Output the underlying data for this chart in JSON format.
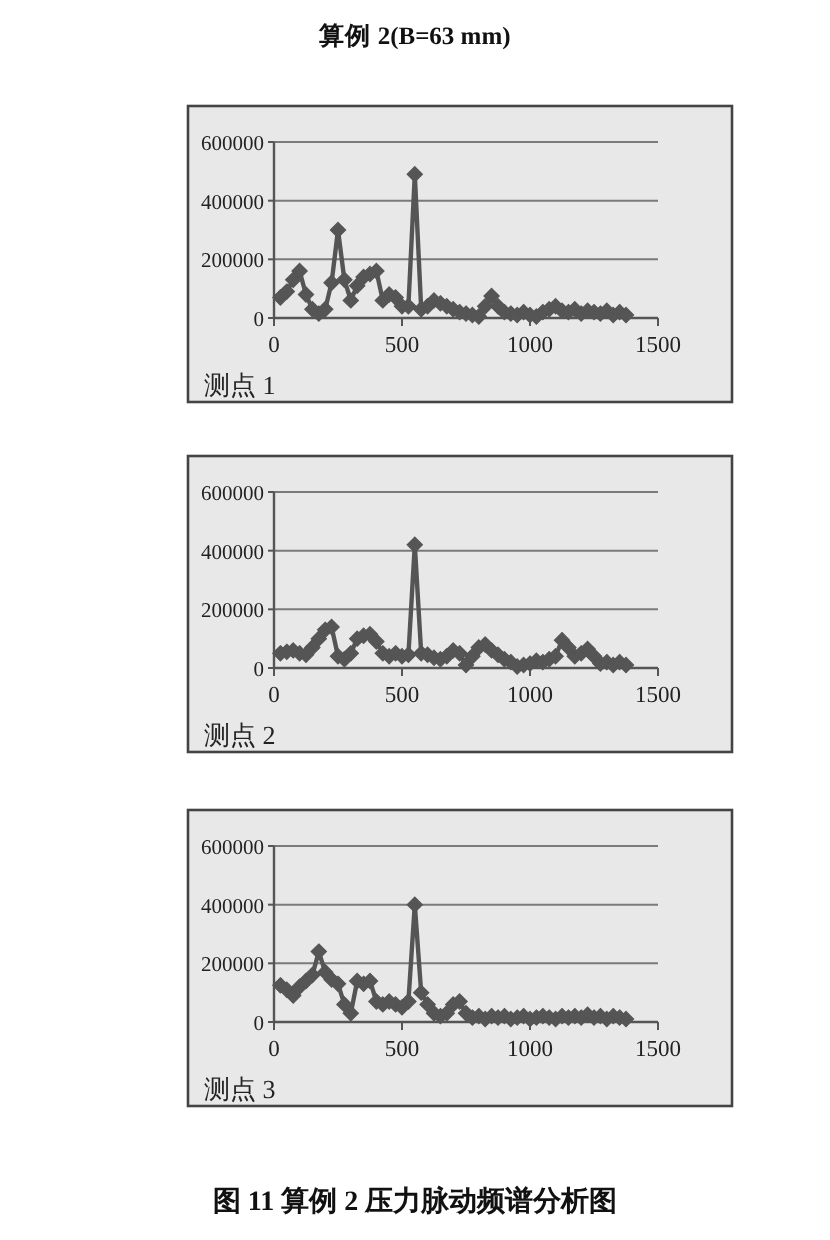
{
  "chart_data": [
    {
      "type": "line",
      "title": "算例 2(B=63 mm)",
      "annotations": [
        "测点 1"
      ],
      "color": "#555555",
      "marker": "diamond",
      "grid": "y",
      "xlim": [
        0,
        1500
      ],
      "xticks": [
        0,
        500,
        1000,
        1500
      ],
      "ylim": [
        0,
        600000
      ],
      "yticks": [
        0,
        200000,
        400000,
        600000
      ],
      "x": [
        25,
        50,
        75,
        100,
        125,
        150,
        175,
        200,
        225,
        250,
        275,
        300,
        325,
        350,
        375,
        400,
        425,
        450,
        475,
        500,
        525,
        550,
        575,
        600,
        625,
        650,
        675,
        700,
        725,
        750,
        775,
        800,
        825,
        850,
        875,
        900,
        925,
        950,
        975,
        1000,
        1025,
        1050,
        1075,
        1100,
        1125,
        1150,
        1175,
        1200,
        1225,
        1250,
        1275,
        1300,
        1325,
        1350,
        1375
      ],
      "values": [
        70000,
        90000,
        130000,
        160000,
        80000,
        30000,
        15000,
        30000,
        120000,
        300000,
        130000,
        60000,
        110000,
        140000,
        150000,
        160000,
        60000,
        80000,
        70000,
        40000,
        40000,
        490000,
        30000,
        40000,
        60000,
        50000,
        40000,
        30000,
        20000,
        15000,
        10000,
        5000,
        40000,
        75000,
        40000,
        20000,
        15000,
        10000,
        20000,
        10000,
        5000,
        20000,
        30000,
        40000,
        25000,
        20000,
        30000,
        15000,
        25000,
        20000,
        15000,
        25000,
        10000,
        20000,
        10000
      ]
    },
    {
      "type": "line",
      "annotations": [
        "测点 2"
      ],
      "color": "#555555",
      "marker": "diamond",
      "grid": "y",
      "xlim": [
        0,
        1500
      ],
      "xticks": [
        0,
        500,
        1000,
        1500
      ],
      "ylim": [
        0,
        600000
      ],
      "yticks": [
        0,
        200000,
        400000,
        600000
      ],
      "x": [
        25,
        50,
        75,
        100,
        125,
        150,
        175,
        200,
        225,
        250,
        275,
        300,
        325,
        350,
        375,
        400,
        425,
        450,
        475,
        500,
        525,
        550,
        575,
        600,
        625,
        650,
        675,
        700,
        725,
        750,
        775,
        800,
        825,
        850,
        875,
        900,
        925,
        950,
        975,
        1000,
        1025,
        1050,
        1075,
        1100,
        1125,
        1150,
        1175,
        1200,
        1225,
        1250,
        1275,
        1300,
        1325,
        1350,
        1375
      ],
      "values": [
        50000,
        55000,
        60000,
        50000,
        45000,
        70000,
        100000,
        130000,
        140000,
        40000,
        30000,
        50000,
        100000,
        110000,
        115000,
        90000,
        50000,
        40000,
        50000,
        40000,
        45000,
        420000,
        50000,
        45000,
        35000,
        30000,
        40000,
        60000,
        50000,
        10000,
        40000,
        70000,
        80000,
        60000,
        45000,
        30000,
        20000,
        5000,
        10000,
        15000,
        25000,
        20000,
        30000,
        40000,
        95000,
        70000,
        40000,
        50000,
        65000,
        40000,
        15000,
        20000,
        10000,
        20000,
        10000
      ]
    },
    {
      "type": "line",
      "annotations": [
        "测点 3",
        "图 11 算例 2 压力脉动频谱分析图"
      ],
      "color": "#555555",
      "marker": "diamond",
      "grid": "y",
      "xlim": [
        0,
        1500
      ],
      "xticks": [
        0,
        500,
        1000,
        1500
      ],
      "ylim": [
        0,
        600000
      ],
      "yticks": [
        0,
        200000,
        400000,
        600000
      ],
      "x": [
        25,
        50,
        75,
        100,
        125,
        150,
        175,
        200,
        225,
        250,
        275,
        300,
        325,
        350,
        375,
        400,
        425,
        450,
        475,
        500,
        525,
        550,
        575,
        600,
        625,
        650,
        675,
        700,
        725,
        750,
        775,
        800,
        825,
        850,
        875,
        900,
        925,
        950,
        975,
        1000,
        1025,
        1050,
        1075,
        1100,
        1125,
        1150,
        1175,
        1200,
        1225,
        1250,
        1275,
        1300,
        1325,
        1350,
        1375
      ],
      "values": [
        125000,
        110000,
        90000,
        120000,
        140000,
        160000,
        240000,
        170000,
        145000,
        130000,
        60000,
        30000,
        140000,
        130000,
        140000,
        70000,
        60000,
        70000,
        60000,
        50000,
        70000,
        400000,
        100000,
        60000,
        30000,
        20000,
        30000,
        60000,
        70000,
        30000,
        15000,
        20000,
        10000,
        20000,
        15000,
        20000,
        10000,
        15000,
        20000,
        10000,
        15000,
        20000,
        15000,
        10000,
        20000,
        15000,
        20000,
        15000,
        25000,
        15000,
        20000,
        10000,
        20000,
        15000,
        10000
      ]
    }
  ]
}
